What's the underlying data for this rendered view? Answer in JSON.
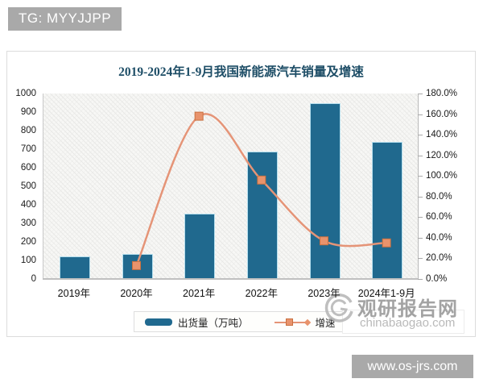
{
  "page": {
    "tg_badge": "TG: MYYJJPP",
    "footer_badge": "www.os-jrs.com"
  },
  "watermark": {
    "site_name": "观研报告网",
    "site_url": "chinabaogao.com",
    "logo": "swirl-logo"
  },
  "colors": {
    "bar": "#20698e",
    "bar_border": "#b5dfee",
    "line": "#e59477",
    "marker_fill": "#e8936c",
    "marker_border": "#c9703f",
    "title": "#1d4d66",
    "badge_bg": "#a9a9a9"
  },
  "chart_data": {
    "type": "bar",
    "title": "2019-2024年1-9月我国新能源汽车销量及增速",
    "categories": [
      "2019年",
      "2020年",
      "2021年",
      "2022年",
      "2023年",
      "2024年1-9月"
    ],
    "series": [
      {
        "name": "出货量（万吨）",
        "type": "bar",
        "axis": "left",
        "values": [
          120,
          136,
          352,
          689,
          950,
          740
        ]
      },
      {
        "name": "增速（%）",
        "type": "line",
        "axis": "right",
        "unit": "%",
        "values": [
          null,
          13,
          158,
          96,
          37,
          35
        ]
      }
    ],
    "left_axis": {
      "min": 0,
      "max": 1000,
      "step": 100,
      "ticks": [
        "1000",
        "900",
        "800",
        "700",
        "600",
        "500",
        "400",
        "300",
        "200",
        "100",
        "0"
      ]
    },
    "right_axis": {
      "min": 0,
      "max": 180,
      "step": 20,
      "ticks": [
        "180.0%",
        "160.0%",
        "140.0%",
        "120.0%",
        "100.0%",
        "80.0%",
        "60.0%",
        "40.0%",
        "20.0%",
        "0.0%"
      ]
    },
    "grid": false,
    "legend_position": "bottom"
  }
}
